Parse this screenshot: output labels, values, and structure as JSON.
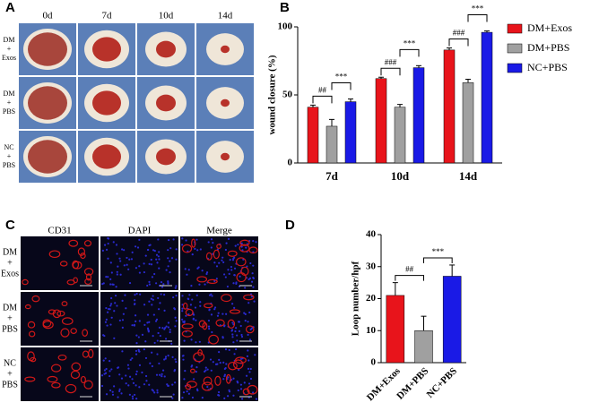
{
  "panels": {
    "a": {
      "label": "A",
      "columns": [
        "0d",
        "7d",
        "10d",
        "14d"
      ],
      "rows": [
        [
          "DM",
          "+",
          "Exos"
        ],
        [
          "DM",
          "+",
          "PBS"
        ],
        [
          "NC",
          "+",
          "PBS"
        ]
      ]
    },
    "c": {
      "label": "C",
      "columns": [
        "CD31",
        "DAPI",
        "Merge"
      ],
      "rows": [
        [
          "DM",
          "+",
          "Exos"
        ],
        [
          "DM",
          "+",
          "PBS"
        ],
        [
          "NC",
          "+",
          "PBS"
        ]
      ]
    }
  },
  "chart_data": [
    {
      "type": "grouped-bar",
      "label": "B",
      "ylabel": "wound closure (%)",
      "categories": [
        "7d",
        "10d",
        "14d"
      ],
      "series": [
        {
          "name": "DM+Exos",
          "color": "#e8141b",
          "values": [
            41,
            62,
            83
          ],
          "errors": [
            1.5,
            1,
            1.5
          ]
        },
        {
          "name": "DM+PBS",
          "color": "#a0a0a0",
          "values": [
            27,
            41,
            59
          ],
          "errors": [
            5,
            2,
            2.5
          ]
        },
        {
          "name": "NC+PBS",
          "color": "#1a1ae6",
          "values": [
            45,
            70,
            96
          ],
          "errors": [
            2,
            1.5,
            1
          ]
        }
      ],
      "ylim": [
        0,
        100
      ],
      "yticks": [
        0,
        50,
        100
      ],
      "annotations": [
        "##",
        "***",
        "###",
        "***",
        "###",
        "***"
      ]
    },
    {
      "type": "bar",
      "label": "D",
      "ylabel": "Loop number/hpf",
      "categories": [
        "DM+Exos",
        "DM+PBS",
        "NC+PBS"
      ],
      "values": [
        21,
        10,
        27
      ],
      "errors": [
        4,
        4.5,
        3.5
      ],
      "colors": [
        "#e8141b",
        "#a0a0a0",
        "#1a1ae6"
      ],
      "ylim": [
        0,
        40
      ],
      "yticks": [
        0,
        10,
        20,
        30,
        40
      ],
      "annotations": [
        "##",
        "***"
      ]
    }
  ]
}
